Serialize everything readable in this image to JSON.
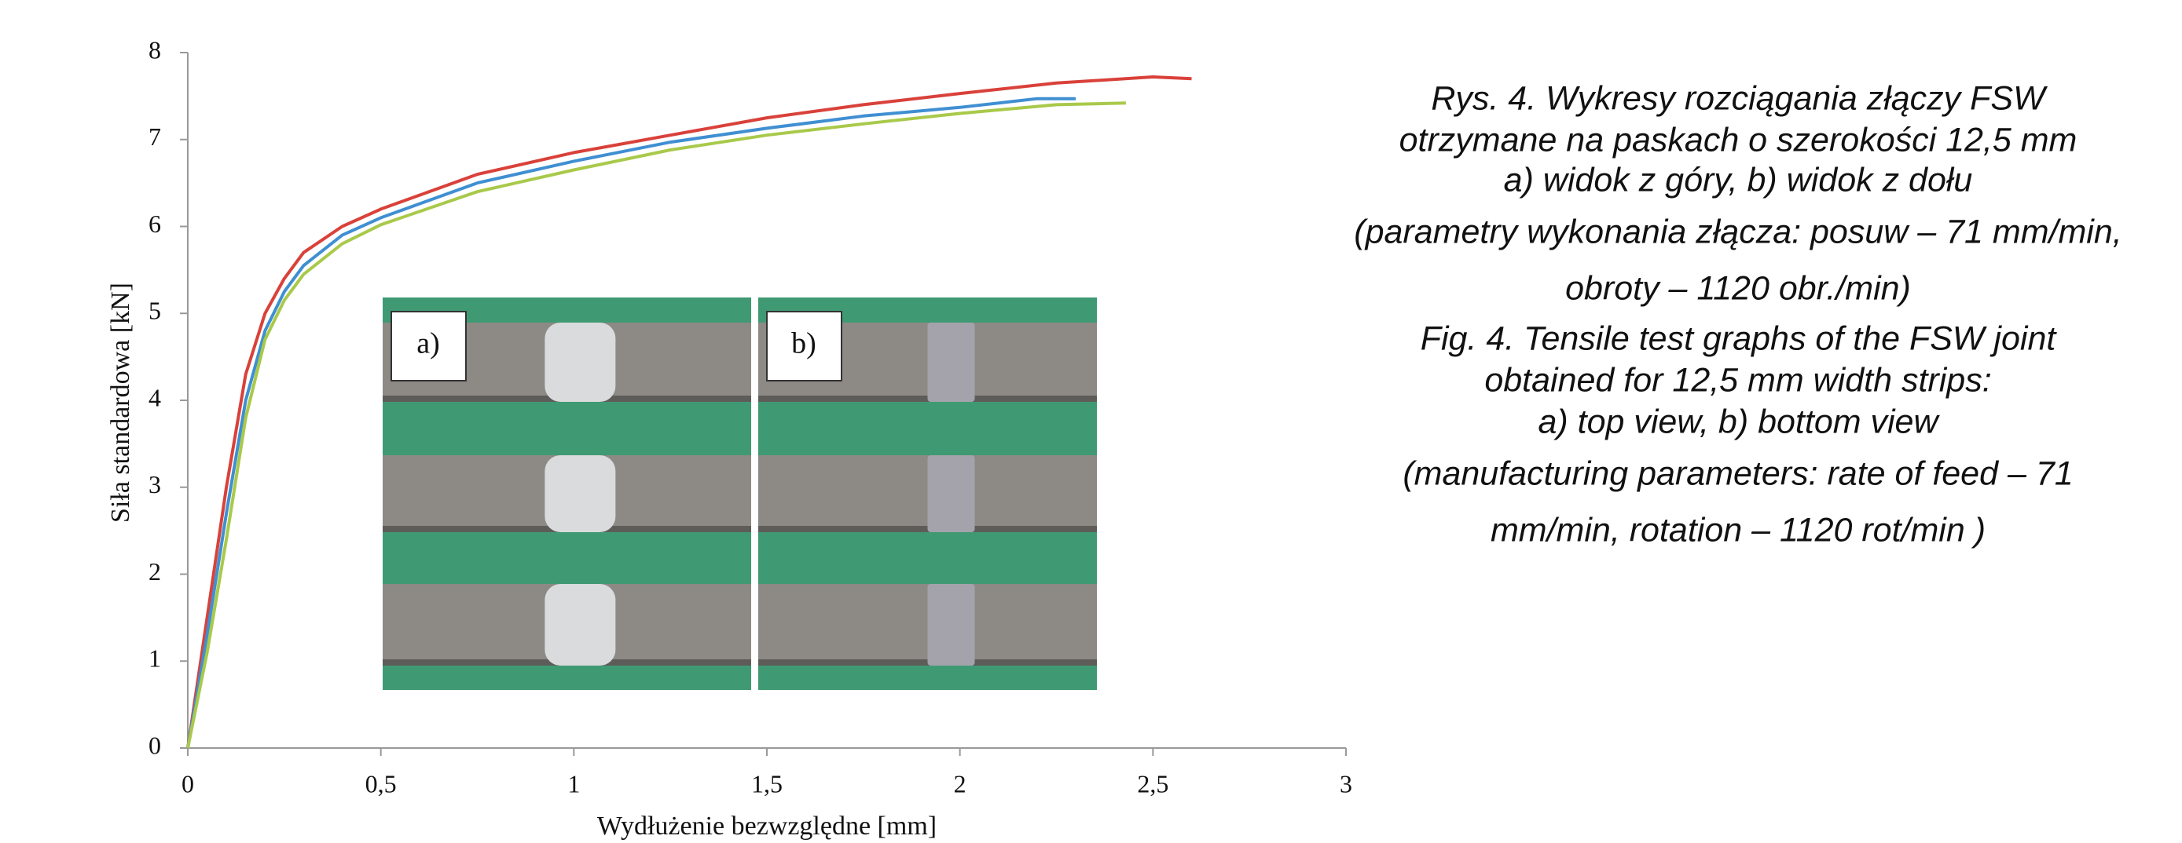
{
  "chart_data": {
    "type": "line",
    "xlabel": "Wydłużenie bezwzględne [mm]",
    "ylabel": "Siła standardowa [kN]",
    "xlim": [
      0,
      3
    ],
    "ylim": [
      0,
      8
    ],
    "xticks": [
      0,
      {
        "value": 0.5,
        "label": "0,5"
      },
      1,
      {
        "value": 1.5,
        "label": "1,5"
      },
      2,
      {
        "value": 2.5,
        "label": "2,5"
      },
      3
    ],
    "yticks": [
      0,
      1,
      2,
      3,
      4,
      5,
      6,
      7,
      8
    ],
    "grid": false,
    "series": [
      {
        "color": "#d9413a",
        "x": [
          0,
          0.05,
          0.1,
          0.15,
          0.2,
          0.25,
          0.3,
          0.4,
          0.5,
          0.75,
          1.0,
          1.25,
          1.5,
          1.75,
          2.0,
          2.25,
          2.5,
          2.6
        ],
        "values": [
          0,
          1.5,
          3.0,
          4.3,
          5.0,
          5.4,
          5.7,
          6.0,
          6.2,
          6.6,
          6.85,
          7.05,
          7.25,
          7.4,
          7.53,
          7.65,
          7.72,
          7.7
        ]
      },
      {
        "color": "#3f8fd2",
        "x": [
          0,
          0.05,
          0.1,
          0.15,
          0.2,
          0.25,
          0.3,
          0.4,
          0.5,
          0.75,
          1.0,
          1.25,
          1.5,
          1.75,
          2.0,
          2.2,
          2.3
        ],
        "values": [
          0,
          1.3,
          2.7,
          4.0,
          4.8,
          5.25,
          5.55,
          5.9,
          6.1,
          6.5,
          6.75,
          6.97,
          7.13,
          7.27,
          7.37,
          7.47,
          7.47
        ]
      },
      {
        "color": "#a9c94a",
        "x": [
          0,
          0.05,
          0.1,
          0.15,
          0.2,
          0.25,
          0.3,
          0.4,
          0.5,
          0.75,
          1.0,
          1.25,
          1.5,
          1.75,
          2.0,
          2.25,
          2.43
        ],
        "values": [
          0,
          1.1,
          2.4,
          3.8,
          4.7,
          5.15,
          5.45,
          5.8,
          6.02,
          6.4,
          6.65,
          6.88,
          7.05,
          7.18,
          7.3,
          7.4,
          7.42
        ]
      }
    ],
    "inset_labels": [
      "a)",
      "b)"
    ],
    "caption": [
      "Rys. 4. Wykresy rozciągania złączy FSW",
      "otrzymane na paskach o szerokości 12,5 mm",
      "a) widok z góry, b) widok z dołu",
      "(parametry wykonania złącza: posuw – 71 mm/min,",
      "obroty – 1120 obr./min)",
      "Fig. 4. Tensile test graphs  of the FSW joint",
      "obtained for 12,5 mm width strips:",
      "a) top view, b) bottom view",
      "(manufacturing parameters: rate of feed – 71",
      "mm/min, rotation – 1120 rot/min )"
    ]
  }
}
